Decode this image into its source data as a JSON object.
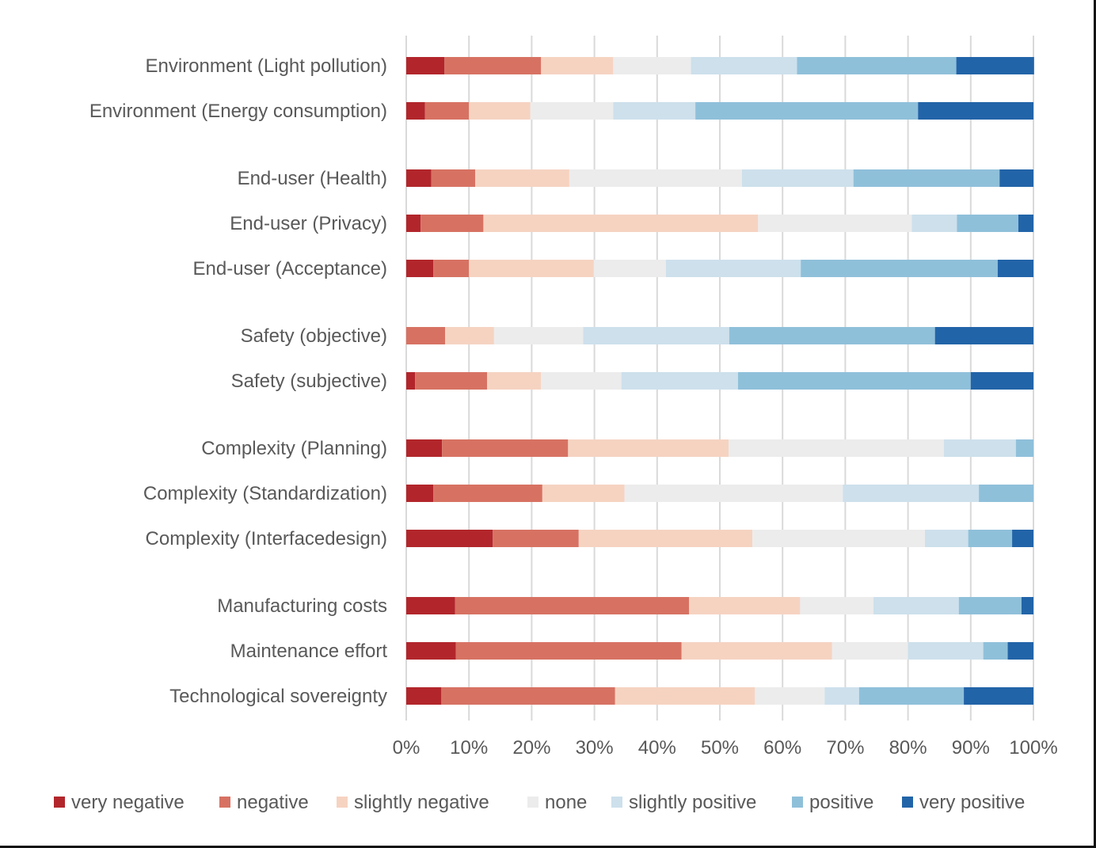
{
  "chart_data": {
    "type": "bar",
    "orientation": "horizontal",
    "stacked": "100%",
    "title": "",
    "xlabel": "",
    "ylabel": "",
    "xlim": [
      0,
      100
    ],
    "grid": true,
    "legend_position": "bottom",
    "x_ticks": [
      "0%",
      "10%",
      "20%",
      "30%",
      "40%",
      "50%",
      "60%",
      "70%",
      "80%",
      "90%",
      "100%"
    ],
    "groups": [
      [
        "Environment (Light pollution)",
        "Environment (Energy consumption)"
      ],
      [
        "End-user (Health)",
        "End-user (Privacy)",
        "End-user (Acceptance)"
      ],
      [
        "Safety (objective)",
        "Safety (subjective)"
      ],
      [
        "Complexity (Planning)",
        "Complexity (Standardization)",
        "Complexity (Interfacedesign)"
      ],
      [
        "Manufacturing costs",
        "Maintenance effort",
        "Technological sovereignty"
      ]
    ],
    "categories": [
      "Environment (Light pollution)",
      "Environment (Energy consumption)",
      "End-user (Health)",
      "End-user (Privacy)",
      "End-user (Acceptance)",
      "Safety (objective)",
      "Safety (subjective)",
      "Complexity (Planning)",
      "Complexity (Standardization)",
      "Complexity (Interfacedesign)",
      "Manufacturing costs",
      "Maintenance effort",
      "Technological sovereignty"
    ],
    "series": [
      {
        "name": "very negative",
        "color": "#b2262b",
        "values": [
          6.1,
          3.0,
          4.0,
          2.3,
          4.3,
          0.0,
          1.4,
          5.7,
          4.3,
          13.8,
          7.8,
          7.9,
          5.6
        ]
      },
      {
        "name": "negative",
        "color": "#d77263",
        "values": [
          15.4,
          7.0,
          7.0,
          10.0,
          5.7,
          6.2,
          11.5,
          20.1,
          17.4,
          13.7,
          37.3,
          36.0,
          27.7
        ]
      },
      {
        "name": "slightly negative",
        "color": "#f6d3c1",
        "values": [
          11.5,
          9.8,
          15.0,
          43.8,
          19.9,
          7.8,
          8.6,
          25.6,
          13.1,
          27.7,
          17.7,
          24.0,
          22.3
        ]
      },
      {
        "name": "none",
        "color": "#ececec",
        "values": [
          12.4,
          13.2,
          27.5,
          24.5,
          11.5,
          14.2,
          12.8,
          34.3,
          34.8,
          27.5,
          11.7,
          12.1,
          11.1
        ]
      },
      {
        "name": "slightly positive",
        "color": "#cde0ec",
        "values": [
          16.9,
          13.1,
          17.8,
          7.2,
          21.5,
          23.3,
          18.6,
          11.5,
          21.7,
          6.9,
          13.6,
          12.0,
          5.5
        ]
      },
      {
        "name": "positive",
        "color": "#8fc0da",
        "values": [
          25.4,
          35.5,
          23.3,
          9.8,
          31.4,
          32.8,
          37.1,
          2.8,
          8.7,
          7.0,
          10.0,
          3.9,
          16.7
        ]
      },
      {
        "name": "very positive",
        "color": "#2264a8",
        "values": [
          12.4,
          18.4,
          5.4,
          2.4,
          5.7,
          15.7,
          10.0,
          0.0,
          0.0,
          3.4,
          1.9,
          4.1,
          11.1
        ]
      }
    ]
  }
}
